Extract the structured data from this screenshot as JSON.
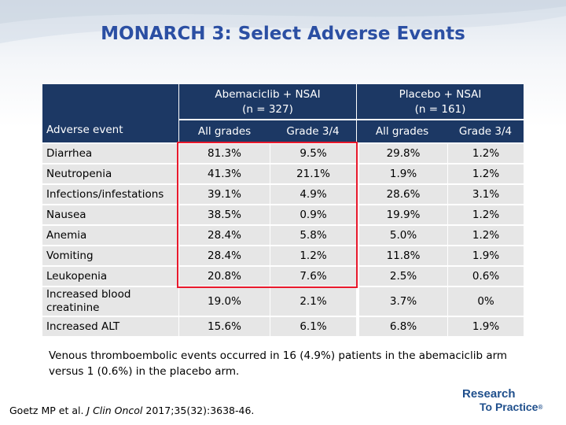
{
  "title": "MONARCH 3: Select Adverse Events",
  "table": {
    "arm1": {
      "name": "Abemaciclib + NSAI",
      "n": "(n = 327)"
    },
    "arm2": {
      "name": "Placebo + NSAI",
      "n": "(n = 161)"
    },
    "col_event": "Adverse event",
    "col_all": "All grades",
    "col_g34": "Grade 3/4",
    "rows": [
      {
        "event": "Diarrhea",
        "a_all": "81.3%",
        "a_g34": "9.5%",
        "p_all": "29.8%",
        "p_g34": "1.2%"
      },
      {
        "event": "Neutropenia",
        "a_all": "41.3%",
        "a_g34": "21.1%",
        "p_all": "1.9%",
        "p_g34": "1.2%"
      },
      {
        "event": "Infections/infestations",
        "a_all": "39.1%",
        "a_g34": "4.9%",
        "p_all": "28.6%",
        "p_g34": "3.1%"
      },
      {
        "event": "Nausea",
        "a_all": "38.5%",
        "a_g34": "0.9%",
        "p_all": "19.9%",
        "p_g34": "1.2%"
      },
      {
        "event": "Anemia",
        "a_all": "28.4%",
        "a_g34": "5.8%",
        "p_all": "5.0%",
        "p_g34": "1.2%"
      },
      {
        "event": "Vomiting",
        "a_all": "28.4%",
        "a_g34": "1.2%",
        "p_all": "11.8%",
        "p_g34": "1.9%"
      },
      {
        "event": "Leukopenia",
        "a_all": "20.8%",
        "a_g34": "7.6%",
        "p_all": "2.5%",
        "p_g34": "0.6%"
      },
      {
        "event": "Increased blood creatinine",
        "a_all": "19.0%",
        "a_g34": "2.1%",
        "p_all": "3.7%",
        "p_g34": "0%"
      },
      {
        "event": "Increased ALT",
        "a_all": "15.6%",
        "a_g34": "6.1%",
        "p_all": "6.8%",
        "p_g34": "1.9%"
      }
    ]
  },
  "footnote": "Venous thromboembolic events occurred in 16 (4.9%) patients in the abemaciclib arm versus 1 (0.6%) in the placebo arm.",
  "citation": {
    "authors": "Goetz MP et al.",
    "journal": "J Clin Oncol",
    "ref": "2017;35(32):3638-46."
  },
  "logo": {
    "line1": "Research",
    "line2": "To Practice",
    "reg": "®"
  },
  "colors": {
    "title": "#2b4fa3",
    "header_bg": "#1c3864",
    "row_bg": "#e6e6e6",
    "highlight": "#e8192c",
    "logo": "#1f4f8c"
  }
}
